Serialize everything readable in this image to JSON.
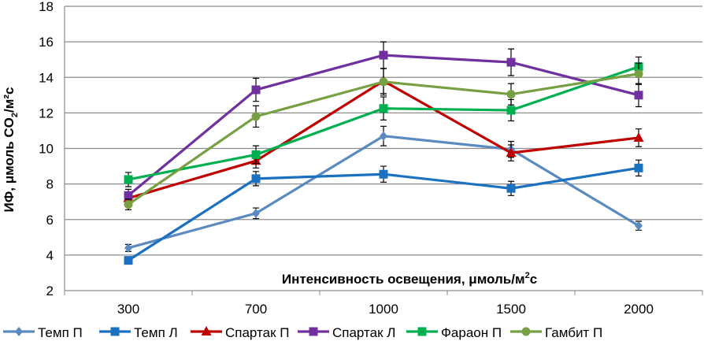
{
  "chart_data": {
    "type": "line",
    "title": "",
    "xlabel": "Интенсивность освещения, μмоль/м²с",
    "xlabel_parts": {
      "main": "Интенсивность освещения, μмоль/м",
      "sup": "2",
      "tail": "с"
    },
    "ylabel_parts": {
      "main": "ИФ, μмоль CO",
      "sub": "2",
      "tail": "/м²с"
    },
    "ylabel": "ИФ, μмоль CO₂/м²с",
    "categories": [
      "300",
      "700",
      "1000",
      "1500",
      "2000"
    ],
    "ylim": [
      2,
      18
    ],
    "yticks": [
      "2",
      "4",
      "6",
      "8",
      "10",
      "12",
      "14",
      "16",
      "18"
    ],
    "grid": true,
    "legend_position": "bottom",
    "series": [
      {
        "name": "Темп П",
        "color": "#5B8AC0",
        "marker": "diamond",
        "values": [
          4.4,
          6.35,
          10.7,
          9.95,
          5.65
        ],
        "errors": [
          0.2,
          0.3,
          0.55,
          0.45,
          0.25
        ]
      },
      {
        "name": "Темп Л",
        "color": "#1C70C0",
        "marker": "square",
        "values": [
          3.7,
          8.3,
          8.55,
          7.75,
          8.9
        ],
        "errors": [
          0.1,
          0.4,
          0.45,
          0.4,
          0.45
        ]
      },
      {
        "name": "Спартак П",
        "color": "#C00000",
        "marker": "triangle",
        "values": [
          7.2,
          9.3,
          13.8,
          9.75,
          10.6
        ],
        "errors": [
          0.3,
          0.4,
          0.7,
          0.45,
          0.5
        ]
      },
      {
        "name": "Спартак Л",
        "color": "#7030A0",
        "marker": "square",
        "values": [
          7.35,
          13.3,
          15.25,
          14.85,
          13.0
        ],
        "errors": [
          0.35,
          0.65,
          0.75,
          0.75,
          0.65
        ]
      },
      {
        "name": "Фараон П",
        "color": "#00B050",
        "marker": "square",
        "values": [
          8.25,
          9.65,
          12.25,
          12.15,
          14.6
        ],
        "errors": [
          0.4,
          0.5,
          0.65,
          0.6,
          0.55
        ]
      },
      {
        "name": "Гамбит П",
        "color": "#76A043",
        "marker": "circle",
        "values": [
          6.85,
          11.8,
          13.75,
          13.05,
          14.2
        ],
        "errors": [
          0.3,
          0.6,
          0.75,
          0.6,
          0.6
        ]
      }
    ]
  }
}
